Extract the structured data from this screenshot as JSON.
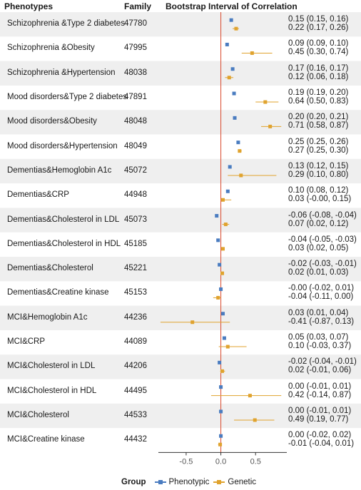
{
  "headers": {
    "phenotypes": "Phenotypes",
    "family": "Family",
    "interval": "Bootstrap Interval of Correlation"
  },
  "legend": {
    "title": "Group",
    "items": [
      "Phenotypic",
      "Genetic"
    ]
  },
  "colors": {
    "phenotypic": "#4a7cc0",
    "genetic": "#e0a32e",
    "zero_line": "#d9482b",
    "stripe": "#efefef"
  },
  "chart_data": {
    "type": "forest",
    "xlim": [
      -0.9,
      0.95
    ],
    "xticks": [
      "-0.5",
      "0.0",
      "0.5"
    ],
    "xtick_values": [
      -0.5,
      0.0,
      0.5
    ],
    "reference_line": 0,
    "series": [
      {
        "name": "Phenotypic"
      },
      {
        "name": "Genetic"
      }
    ],
    "rows": [
      {
        "pair": "Schizophrenia &Type 2 diabetes",
        "family": "47780",
        "pheno": {
          "est": 0.15,
          "lo": 0.15,
          "hi": 0.16,
          "text": "0.15 (0.15, 0.16)"
        },
        "gen": {
          "est": 0.22,
          "lo": 0.17,
          "hi": 0.26,
          "text": "0.22 (0.17, 0.26)"
        }
      },
      {
        "pair": "Schizophrenia &Obesity",
        "family": "47995",
        "pheno": {
          "est": 0.09,
          "lo": 0.09,
          "hi": 0.1,
          "text": "0.09 (0.09, 0.10)"
        },
        "gen": {
          "est": 0.45,
          "lo": 0.3,
          "hi": 0.74,
          "text": "0.45 (0.30, 0.74)"
        }
      },
      {
        "pair": "Schizophrenia &Hypertension",
        "family": "48038",
        "pheno": {
          "est": 0.17,
          "lo": 0.16,
          "hi": 0.17,
          "text": "0.17 (0.16, 0.17)"
        },
        "gen": {
          "est": 0.12,
          "lo": 0.06,
          "hi": 0.18,
          "text": "0.12 (0.06, 0.18)"
        }
      },
      {
        "pair": "Mood disorders&Type 2 diabetes",
        "family": "47891",
        "pheno": {
          "est": 0.19,
          "lo": 0.19,
          "hi": 0.2,
          "text": "0.19 (0.19, 0.20)"
        },
        "gen": {
          "est": 0.64,
          "lo": 0.5,
          "hi": 0.83,
          "text": "0.64 (0.50, 0.83)"
        }
      },
      {
        "pair": "Mood disorders&Obesity",
        "family": "48048",
        "pheno": {
          "est": 0.2,
          "lo": 0.2,
          "hi": 0.21,
          "text": "0.20 (0.20, 0.21)"
        },
        "gen": {
          "est": 0.71,
          "lo": 0.58,
          "hi": 0.87,
          "text": "0.71 (0.58, 0.87)"
        }
      },
      {
        "pair": "Mood disorders&Hypertension",
        "family": "48049",
        "pheno": {
          "est": 0.25,
          "lo": 0.25,
          "hi": 0.26,
          "text": "0.25 (0.25, 0.26)"
        },
        "gen": {
          "est": 0.27,
          "lo": 0.25,
          "hi": 0.3,
          "text": "0.27 (0.25, 0.30)"
        }
      },
      {
        "pair": "Dementias&Hemoglobin A1c",
        "family": "45072",
        "pheno": {
          "est": 0.13,
          "lo": 0.12,
          "hi": 0.15,
          "text": "0.13 (0.12, 0.15)"
        },
        "gen": {
          "est": 0.29,
          "lo": 0.1,
          "hi": 0.8,
          "text": "0.29 (0.10, 0.80)"
        }
      },
      {
        "pair": "Dementias&CRP",
        "family": "44948",
        "pheno": {
          "est": 0.1,
          "lo": 0.08,
          "hi": 0.12,
          "text": "0.10 (0.08, 0.12)"
        },
        "gen": {
          "est": 0.03,
          "lo": -0.0,
          "hi": 0.15,
          "text": "0.03 (-0.00, 0.15)"
        }
      },
      {
        "pair": "Dementias&Cholesterol in LDL",
        "family": "45073",
        "pheno": {
          "est": -0.06,
          "lo": -0.08,
          "hi": -0.04,
          "text": "-0.06 (-0.08, -0.04)"
        },
        "gen": {
          "est": 0.07,
          "lo": 0.02,
          "hi": 0.12,
          "text": "0.07 (0.02, 0.12)"
        }
      },
      {
        "pair": "Dementias&Cholesterol in HDL",
        "family": "45185",
        "pheno": {
          "est": -0.04,
          "lo": -0.05,
          "hi": -0.03,
          "text": "-0.04 (-0.05, -0.03)"
        },
        "gen": {
          "est": 0.03,
          "lo": 0.02,
          "hi": 0.05,
          "text": "0.03 (0.02, 0.05)"
        }
      },
      {
        "pair": "Dementias&Cholesterol",
        "family": "45221",
        "pheno": {
          "est": -0.02,
          "lo": -0.03,
          "hi": -0.01,
          "text": "-0.02 (-0.03, -0.01)"
        },
        "gen": {
          "est": 0.02,
          "lo": 0.01,
          "hi": 0.03,
          "text": "0.02 (0.01, 0.03)"
        }
      },
      {
        "pair": "Dementias&Creatine kinase",
        "family": "45153",
        "pheno": {
          "est": -0.0,
          "lo": -0.02,
          "hi": 0.01,
          "text": "-0.00 (-0.02, 0.01)"
        },
        "gen": {
          "est": -0.04,
          "lo": -0.11,
          "hi": 0.0,
          "text": "-0.04 (-0.11, 0.00)"
        }
      },
      {
        "pair": "MCI&Hemoglobin A1c",
        "family": "44236",
        "pheno": {
          "est": 0.03,
          "lo": 0.01,
          "hi": 0.04,
          "text": "0.03 (0.01, 0.04)"
        },
        "gen": {
          "est": -0.41,
          "lo": -0.87,
          "hi": 0.13,
          "text": "-0.41 (-0.87, 0.13)"
        }
      },
      {
        "pair": "MCI&CRP",
        "family": "44089",
        "pheno": {
          "est": 0.05,
          "lo": 0.03,
          "hi": 0.07,
          "text": "0.05 (0.03, 0.07)"
        },
        "gen": {
          "est": 0.1,
          "lo": -0.03,
          "hi": 0.37,
          "text": "0.10 (-0.03, 0.37)"
        }
      },
      {
        "pair": "MCI&Cholesterol in LDL",
        "family": "44206",
        "pheno": {
          "est": -0.02,
          "lo": -0.04,
          "hi": -0.01,
          "text": "-0.02 (-0.04, -0.01)"
        },
        "gen": {
          "est": 0.02,
          "lo": -0.01,
          "hi": 0.06,
          "text": "0.02 (-0.01, 0.06)"
        }
      },
      {
        "pair": "MCI&Cholesterol in HDL",
        "family": "44495",
        "pheno": {
          "est": 0.0,
          "lo": -0.01,
          "hi": 0.01,
          "text": "0.00 (-0.01, 0.01)"
        },
        "gen": {
          "est": 0.42,
          "lo": -0.14,
          "hi": 0.87,
          "text": "0.42 (-0.14, 0.87)"
        }
      },
      {
        "pair": "MCI&Cholesterol",
        "family": "44533",
        "pheno": {
          "est": 0.0,
          "lo": -0.01,
          "hi": 0.01,
          "text": "0.00 (-0.01, 0.01)"
        },
        "gen": {
          "est": 0.49,
          "lo": 0.19,
          "hi": 0.77,
          "text": "0.49 (0.19, 0.77)"
        }
      },
      {
        "pair": "MCI&Creatine kinase",
        "family": "44432",
        "pheno": {
          "est": 0.0,
          "lo": -0.02,
          "hi": 0.02,
          "text": "0.00 (-0.02, 0.02)"
        },
        "gen": {
          "est": -0.01,
          "lo": -0.04,
          "hi": 0.01,
          "text": "-0.01 (-0.04, 0.01)"
        }
      }
    ]
  }
}
